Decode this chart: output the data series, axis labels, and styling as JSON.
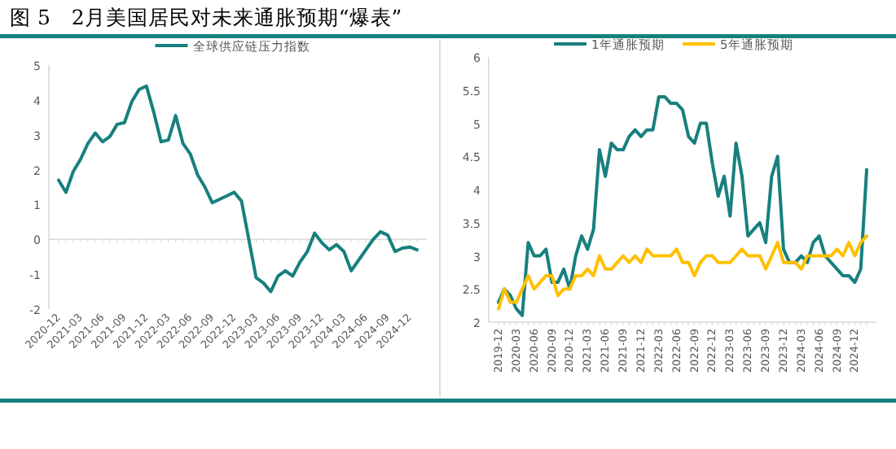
{
  "chart_data": [
    {
      "type": "line",
      "title": "图 5　2月美国居民对未来通胀预期“爆表”",
      "categories": [
        "2020-12",
        null,
        null,
        "2021-03",
        null,
        null,
        "2021-06",
        null,
        null,
        "2021-09",
        null,
        null,
        "2021-12",
        null,
        null,
        "2022-03",
        null,
        null,
        "2022-06",
        null,
        null,
        "2022-09",
        null,
        null,
        "2022-12",
        null,
        null,
        "2023-03",
        null,
        null,
        "2023-06",
        null,
        null,
        "2023-09",
        null,
        null,
        "2023-12",
        null,
        null,
        "2024-03",
        null,
        null,
        "2024-06",
        null,
        null,
        "2024-09",
        null,
        null,
        "2024-12",
        null
      ],
      "series": [
        {
          "name": "全球供应链压力指数",
          "color": "#17807e",
          "values": [
            1.7,
            1.35,
            1.95,
            2.3,
            2.75,
            3.05,
            2.8,
            2.95,
            3.3,
            3.35,
            3.95,
            4.3,
            4.4,
            3.65,
            2.8,
            2.85,
            3.55,
            2.75,
            2.45,
            1.85,
            1.5,
            1.05,
            1.15,
            1.25,
            1.35,
            1.1,
            0.0,
            -1.1,
            -1.25,
            -1.5,
            -1.05,
            -0.9,
            -1.05,
            -0.65,
            -0.35,
            0.18,
            -0.1,
            -0.3,
            -0.15,
            -0.35,
            -0.9,
            -0.6,
            -0.3,
            0.0,
            0.22,
            0.12,
            -0.35,
            -0.25,
            -0.22,
            -0.3
          ]
        }
      ],
      "ylim": [
        -2,
        5
      ],
      "yticks": [
        -2,
        -1,
        0,
        1,
        2,
        3,
        4,
        5
      ],
      "legend": "top"
    },
    {
      "type": "line",
      "categories": [
        "2019-12",
        null,
        null,
        "2020-03",
        null,
        null,
        "2020-06",
        null,
        null,
        "2020-09",
        null,
        null,
        "2020-12",
        null,
        null,
        "2021-03",
        null,
        null,
        "2021-06",
        null,
        null,
        "2021-09",
        null,
        null,
        "2021-12",
        null,
        null,
        "2022-03",
        null,
        null,
        "2022-06",
        null,
        null,
        "2022-09",
        null,
        null,
        "2022-12",
        null,
        null,
        "2023-03",
        null,
        null,
        "2023-06",
        null,
        null,
        "2023-09",
        null,
        null,
        "2023-12",
        null,
        null,
        "2024-03",
        null,
        null,
        "2024-06",
        null,
        null,
        "2024-09",
        null,
        null,
        "2024-12",
        null,
        null
      ],
      "series": [
        {
          "name": "1年通胀预期",
          "color": "#17807e",
          "values": [
            2.3,
            2.5,
            2.4,
            2.2,
            2.1,
            3.2,
            3.0,
            3.0,
            3.1,
            2.6,
            2.6,
            2.8,
            2.5,
            3.0,
            3.3,
            3.1,
            3.4,
            4.6,
            4.2,
            4.7,
            4.6,
            4.6,
            4.8,
            4.9,
            4.8,
            4.9,
            4.9,
            5.4,
            5.4,
            5.3,
            5.3,
            5.2,
            4.8,
            4.7,
            5.0,
            5.0,
            4.4,
            3.9,
            4.2,
            3.6,
            4.7,
            4.2,
            3.3,
            3.4,
            3.5,
            3.2,
            4.2,
            4.5,
            3.1,
            2.9,
            2.9,
            3.0,
            2.9,
            3.2,
            3.3,
            3.0,
            2.9,
            2.8,
            2.7,
            2.7,
            2.6,
            2.8,
            4.3
          ]
        },
        {
          "name": "5年通胀预期",
          "color": "#ffc000",
          "values": [
            2.2,
            2.5,
            2.3,
            2.3,
            2.5,
            2.7,
            2.5,
            2.6,
            2.7,
            2.7,
            2.4,
            2.5,
            2.5,
            2.7,
            2.7,
            2.8,
            2.7,
            3.0,
            2.8,
            2.8,
            2.9,
            3.0,
            2.9,
            3.0,
            2.9,
            3.1,
            3.0,
            3.0,
            3.0,
            3.0,
            3.1,
            2.9,
            2.9,
            2.7,
            2.9,
            3.0,
            3.0,
            2.9,
            2.9,
            2.9,
            3.0,
            3.1,
            3.0,
            3.0,
            3.0,
            2.8,
            3.0,
            3.2,
            2.9,
            2.9,
            2.9,
            2.8,
            3.0,
            3.0,
            3.0,
            3.0,
            3.0,
            3.1,
            3.0,
            3.2,
            3.0,
            3.2,
            3.3
          ]
        }
      ],
      "ylim": [
        2,
        6
      ],
      "yticks": [
        2,
        2.5,
        3,
        3.5,
        4,
        4.5,
        5,
        5.5,
        6
      ],
      "legend": "top"
    }
  ]
}
